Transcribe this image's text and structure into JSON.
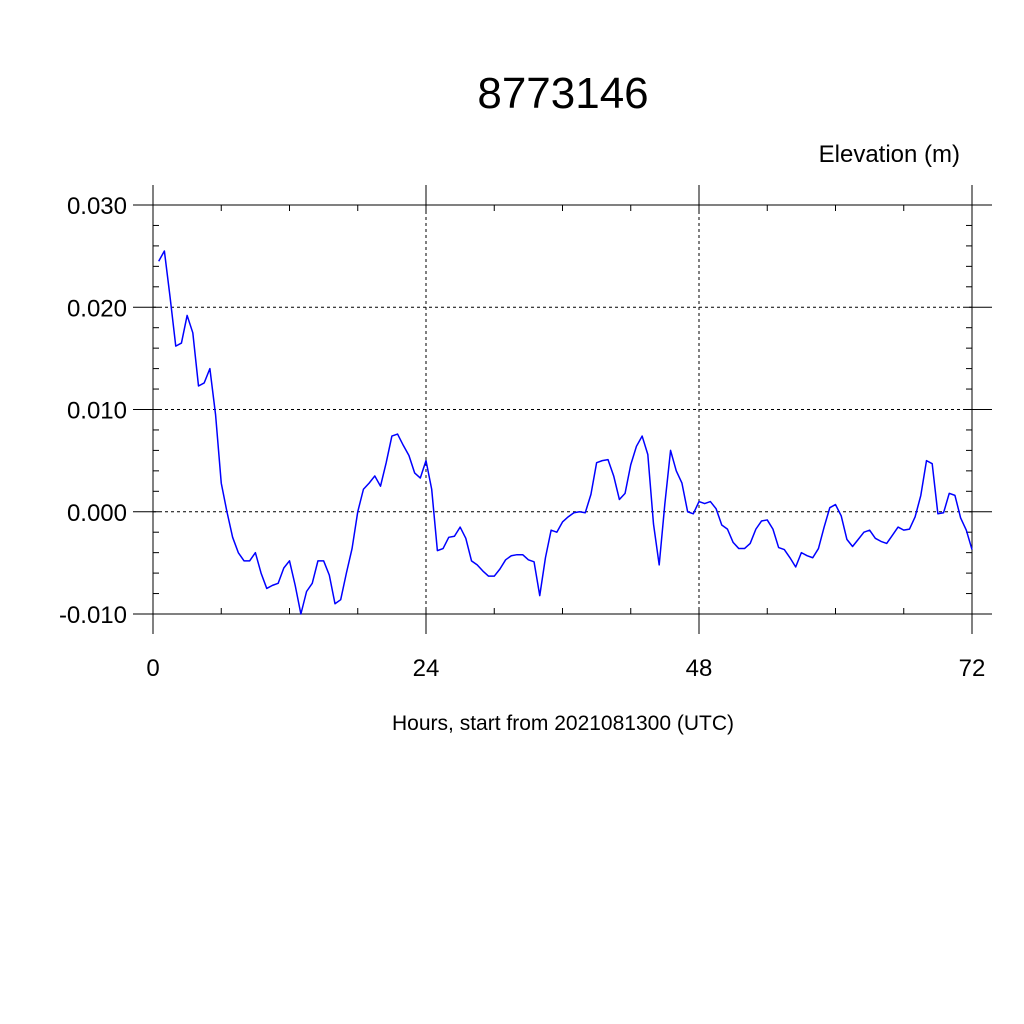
{
  "chart_data": {
    "type": "line",
    "title": "8773146",
    "ylabel": "Elevation (m)",
    "xlabel": "Hours, start from 2021081300 (UTC)",
    "xlim": [
      0,
      72
    ],
    "ylim": [
      -0.01,
      0.03
    ],
    "xticks": [
      0,
      24,
      48,
      72
    ],
    "xtick_labels": [
      "0",
      "24",
      "48",
      "72"
    ],
    "yticks": [
      -0.01,
      0.0,
      0.01,
      0.02,
      0.03
    ],
    "ytick_labels": [
      "-0.010",
      "0.000",
      "0.010",
      "0.020",
      "0.030"
    ],
    "grid": true,
    "line_color": "#0000ff",
    "series": [
      {
        "x": [
          0.5,
          1.0,
          1.5,
          2.0,
          2.5,
          3.0,
          3.5,
          4.0,
          4.5,
          5.0,
          5.5,
          6.0,
          6.5,
          7.0,
          7.5,
          8.0,
          8.5,
          9.0,
          9.5,
          10.0,
          10.5,
          11.0,
          11.5,
          12.0,
          12.5,
          13.0,
          13.5,
          14.0,
          14.5,
          15.0,
          15.5,
          16.0,
          16.5,
          17.0,
          17.5,
          18.0,
          18.5,
          19.0,
          19.5,
          20.0,
          20.5,
          21.0,
          21.5,
          22.0,
          22.5,
          23.0,
          23.5,
          24.0,
          24.5,
          25.0,
          25.5,
          26.0,
          26.5,
          27.0,
          27.5,
          28.0,
          28.5,
          29.0,
          29.5,
          30.0,
          30.5,
          31.0,
          31.5,
          32.0,
          32.5,
          33.0,
          33.5,
          34.0,
          34.5,
          35.0,
          35.5,
          36.0,
          36.5,
          37.0,
          37.5,
          38.0,
          38.5,
          39.0,
          39.5,
          40.0,
          40.5,
          41.0,
          41.5,
          42.0,
          42.5,
          43.0,
          43.5,
          44.0,
          44.5,
          45.0,
          45.5,
          46.0,
          46.5,
          47.0,
          47.5,
          48.0,
          48.5,
          49.0,
          49.5,
          50.0,
          50.5,
          51.0,
          51.5,
          52.0,
          52.5,
          53.0,
          53.5,
          54.0,
          54.5,
          55.0,
          55.5,
          56.0,
          56.5,
          57.0,
          57.5,
          58.0,
          58.5,
          59.0,
          59.5,
          60.0,
          60.5,
          61.0,
          61.5,
          62.0,
          62.5,
          63.0,
          63.5,
          64.0,
          64.5,
          65.0,
          65.5,
          66.0,
          66.5,
          67.0,
          67.5,
          68.0,
          68.5,
          69.0,
          69.5,
          70.0,
          70.5,
          71.0,
          71.5,
          72.0
        ],
        "y": [
          0.0245,
          0.0255,
          0.021,
          0.0162,
          0.0165,
          0.0192,
          0.0175,
          0.0123,
          0.0126,
          0.014,
          0.0095,
          0.0028,
          0.0,
          -0.0025,
          -0.004,
          -0.0048,
          -0.0048,
          -0.004,
          -0.006,
          -0.0075,
          -0.0072,
          -0.007,
          -0.0055,
          -0.0048,
          -0.0072,
          -0.01,
          -0.0078,
          -0.007,
          -0.0048,
          -0.0048,
          -0.0062,
          -0.009,
          -0.0086,
          -0.006,
          -0.0036,
          0.0,
          0.0022,
          0.0028,
          0.0035,
          0.0025,
          0.0048,
          0.0074,
          0.0076,
          0.0065,
          0.0055,
          0.0038,
          0.0033,
          0.005,
          0.0022,
          -0.0038,
          -0.0036,
          -0.0025,
          -0.0024,
          -0.0015,
          -0.0026,
          -0.0048,
          -0.0052,
          -0.0058,
          -0.0063,
          -0.0063,
          -0.0056,
          -0.0047,
          -0.0043,
          -0.0042,
          -0.0042,
          -0.0047,
          -0.0049,
          -0.0082,
          -0.0045,
          -0.0018,
          -0.002,
          -0.001,
          -0.0005,
          -0.0001,
          0.0,
          -0.0001,
          0.0017,
          0.0048,
          0.005,
          0.0051,
          0.0035,
          0.0012,
          0.0018,
          0.0046,
          0.0064,
          0.0074,
          0.0056,
          -0.0012,
          -0.0052,
          0.0008,
          0.006,
          0.004,
          0.0028,
          0.0,
          -0.0002,
          0.001,
          0.0008,
          0.001,
          0.0003,
          -0.0013,
          -0.0017,
          -0.003,
          -0.0036,
          -0.0036,
          -0.0031,
          -0.0017,
          -0.0009,
          -0.0008,
          -0.0017,
          -0.0035,
          -0.0037,
          -0.0045,
          -0.0054,
          -0.004,
          -0.0043,
          -0.0045,
          -0.0036,
          -0.0015,
          0.0004,
          0.0007,
          -0.0004,
          -0.0027,
          -0.0034,
          -0.0027,
          -0.002,
          -0.0018,
          -0.0026,
          -0.0029,
          -0.0031,
          -0.0023,
          -0.0015,
          -0.0018,
          -0.0017,
          -0.0005,
          0.0016,
          0.005,
          0.0047,
          -0.0002,
          -0.0001,
          0.0018,
          0.0016,
          -0.0006,
          -0.0018,
          -0.0037
        ]
      }
    ]
  }
}
